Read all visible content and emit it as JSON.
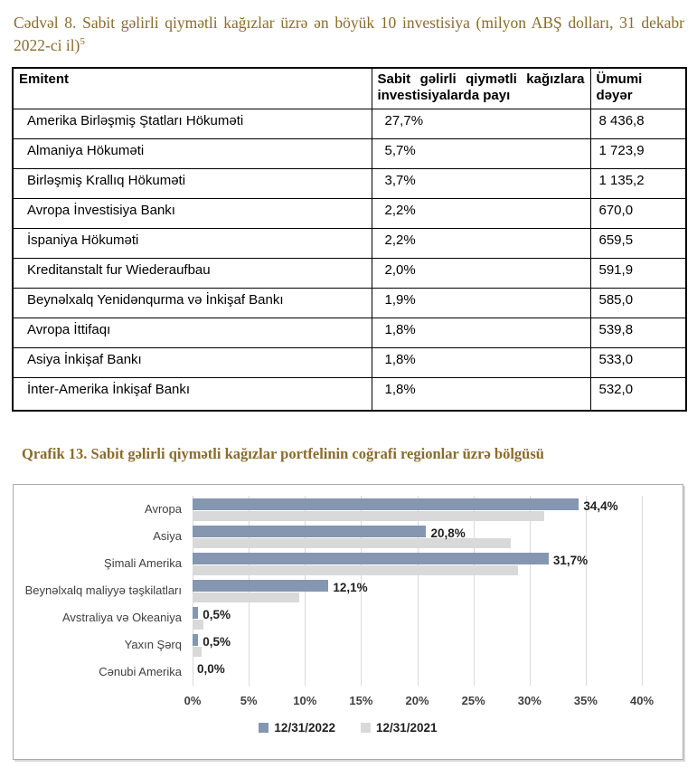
{
  "table_caption": {
    "text": "Cədvəl 8. Sabit gəlirli qiymətli kağızlar üzrə ən böyük 10 investisiya (milyon ABŞ dolları, 31 dekabr 2022-ci il)",
    "footnote_marker": "5"
  },
  "table": {
    "columns": [
      "Emitent",
      "Sabit gəlirli qiymətli kağızlara investisiyalarda payı",
      "Ümumi dəyər"
    ],
    "rows": [
      [
        "Amerika Birləşmiş Ştatları Hökuməti",
        "27,7%",
        "8 436,8"
      ],
      [
        "Almaniya Hökuməti",
        "5,7%",
        "1 723,9"
      ],
      [
        "Birləşmiş Krallıq Hökuməti",
        "3,7%",
        "1 135,2"
      ],
      [
        "Avropa İnvestisiya Bankı",
        "2,2%",
        "670,0"
      ],
      [
        "İspaniya Hökuməti",
        "2,2%",
        "659,5"
      ],
      [
        "Kreditanstalt fur Wiederaufbau",
        "2,0%",
        "591,9"
      ],
      [
        "Beynəlxalq Yenidənqurma və İnkişaf Bankı",
        "1,9%",
        "585,0"
      ],
      [
        "Avropa İttifaqı",
        "1,8%",
        "539,8"
      ],
      [
        "Asiya İnkişaf Bankı",
        "1,8%",
        "533,0"
      ],
      [
        "İnter-Amerika İnkişaf Bankı",
        "1,8%",
        "532,0"
      ]
    ]
  },
  "chart_caption": "Qrafik 13. Sabit gəlirli qiymətli kağızlar portfelinin coğrafi regionlar üzrə bölgüsü",
  "chart_data": {
    "type": "bar",
    "orientation": "horizontal",
    "categories": [
      "Avropa",
      "Asiya",
      "Şimali Amerika",
      "Beynəlxalq maliyyə təşkilatları",
      "Avstraliya və Okeaniya",
      "Yaxın Şərq",
      "Cənubi Amerika"
    ],
    "series": [
      {
        "name": "12/31/2022",
        "color": "#8496b0",
        "values": [
          34.4,
          20.8,
          31.7,
          12.1,
          0.5,
          0.5,
          0.0
        ],
        "labels": [
          "34,4%",
          "20,8%",
          "31,7%",
          "12,1%",
          "0,5%",
          "0,5%",
          "0,0%"
        ]
      },
      {
        "name": "12/31/2021",
        "color": "#d9d9d9",
        "values": [
          31.3,
          28.3,
          29.0,
          9.5,
          1.0,
          0.8,
          0.0
        ]
      }
    ],
    "xlim": [
      0,
      40
    ],
    "x_ticks": [
      "0%",
      "5%",
      "10%",
      "15%",
      "20%",
      "25%",
      "30%",
      "35%",
      "40%"
    ],
    "grid": true,
    "legend_position": "bottom"
  },
  "colors": {
    "caption_text": "#8a6c2b",
    "bar_2022": "#8496b0",
    "bar_2021": "#d9d9d9",
    "gridline": "#d9d9d9",
    "chart_border": "#ababab"
  }
}
